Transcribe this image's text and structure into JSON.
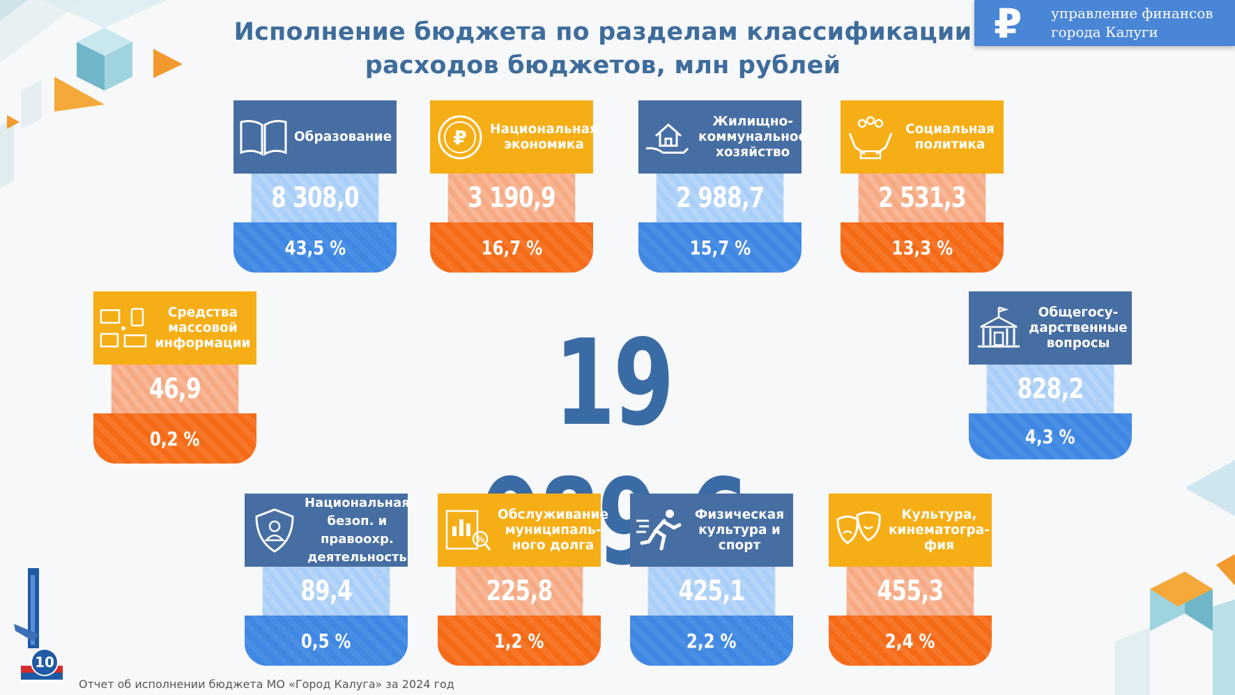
{
  "title": {
    "line1": "Исполнение бюджета по разделам классификации",
    "line2": "расходов бюджетов, млн рублей"
  },
  "brand": {
    "icon": "ruble-icon",
    "line1": "управление финансов",
    "line2": "города Калуги"
  },
  "total": "19 089,6",
  "cards": [
    {
      "id": "education",
      "icon": "book-icon",
      "label_lines": [
        "Образование"
      ],
      "value": "8 308,0",
      "percent": "43,5 %",
      "color": "blue"
    },
    {
      "id": "economy",
      "icon": "ruble-coin-icon",
      "label_lines": [
        "Национальная",
        "экономика"
      ],
      "value": "3 190,9",
      "percent": "16,7 %",
      "color": "yellow"
    },
    {
      "id": "housing",
      "icon": "house-hand-icon",
      "label_lines": [
        "Жилищно-",
        "коммунальное",
        "хозяйство"
      ],
      "value": "2 988,7",
      "percent": "15,7 %",
      "color": "blue"
    },
    {
      "id": "social",
      "icon": "family-hands-icon",
      "label_lines": [
        "Социальная",
        "политика"
      ],
      "value": "2 531,3",
      "percent": "13,3 %",
      "color": "yellow"
    },
    {
      "id": "media",
      "icon": "media-devices-icon",
      "label_lines": [
        "Средства",
        "массовой",
        "информации"
      ],
      "value": "46,9",
      "percent": "0,2 %",
      "color": "yellow"
    },
    {
      "id": "general",
      "icon": "government-building-icon",
      "label_lines": [
        "Общегосу-",
        "дарственные",
        "вопросы"
      ],
      "value": "828,2",
      "percent": "4,3 %",
      "color": "blue"
    },
    {
      "id": "security",
      "icon": "shield-person-icon",
      "label_lines": [
        "Национальная",
        "безоп. и",
        "правоохр.",
        "деятельность"
      ],
      "value": "89,4",
      "percent": "0,5 %",
      "color": "blue"
    },
    {
      "id": "debt",
      "icon": "debt-chart-icon",
      "label_lines": [
        "Обслуживание",
        "муниципаль-",
        "ного долга"
      ],
      "value": "225,8",
      "percent": "1,2 %",
      "color": "yellow"
    },
    {
      "id": "sport",
      "icon": "runner-icon",
      "label_lines": [
        "Физическая",
        "культура и",
        "спорт"
      ],
      "value": "425,1",
      "percent": "2,2 %",
      "color": "blue"
    },
    {
      "id": "culture",
      "icon": "theater-masks-icon",
      "label_lines": [
        "Культура,",
        "кинематогра-",
        "фия"
      ],
      "value": "455,3",
      "percent": "2,4 %",
      "color": "yellow"
    }
  ],
  "footer": {
    "page_number": "10",
    "text": "Отчет об исполнении бюджета МО «Город Калуга» за 2024 год"
  }
}
